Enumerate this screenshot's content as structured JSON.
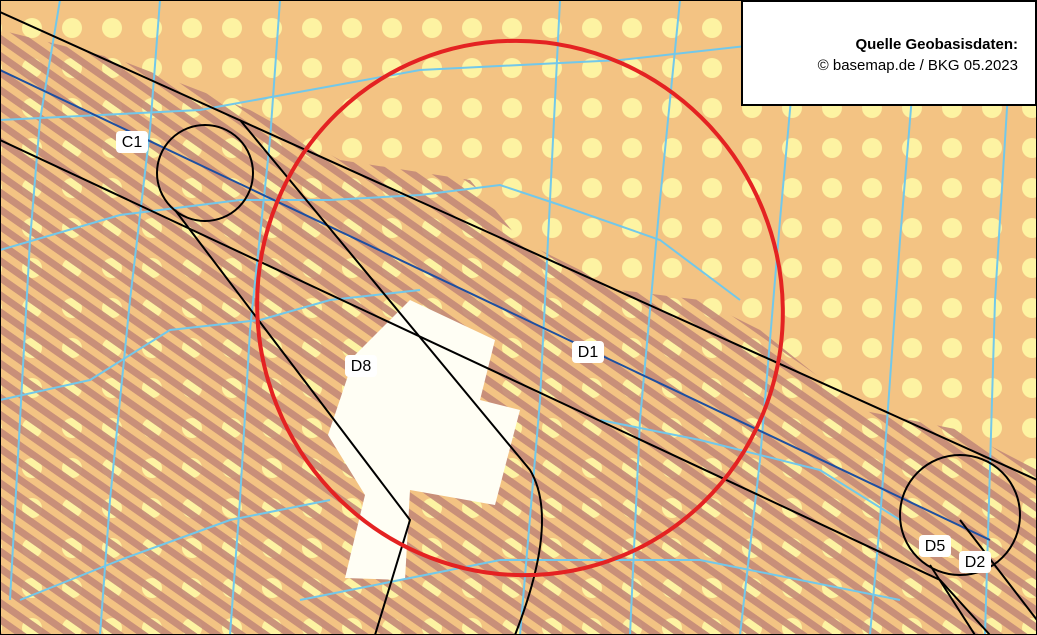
{
  "attribution": {
    "title": "Quelle Geobasisdaten:",
    "text": "© basemap.de / BKG 05.2023"
  },
  "labels": [
    "C1",
    "D1",
    "D8",
    "D5",
    "D2"
  ]
}
